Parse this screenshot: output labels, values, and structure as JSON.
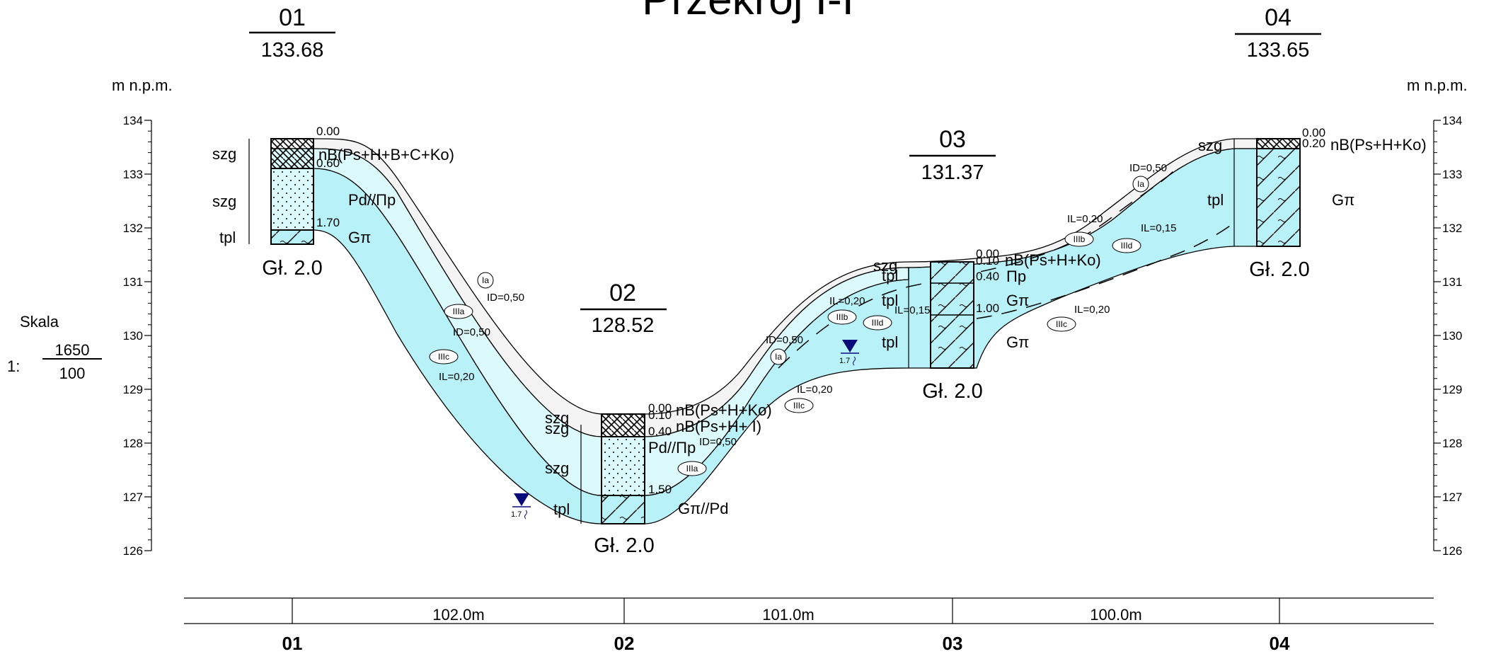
{
  "title": "Przekrój I-I",
  "unit_label": "m n.p.m.",
  "scale": {
    "label": "Skala",
    "prefix": "1:",
    "numerator": "1650",
    "denominator": "100"
  },
  "axis": {
    "ticks": [
      "134",
      "133",
      "132",
      "131",
      "130",
      "129",
      "128",
      "127",
      "126"
    ],
    "min": 126,
    "max": 134
  },
  "boreholes": [
    {
      "id": "01",
      "elevation": "133.68",
      "depth_label": "Gł. 2.0",
      "ground": 133.68
    },
    {
      "id": "02",
      "elevation": "128.52",
      "depth_label": "Gł. 2.0",
      "ground": 128.52
    },
    {
      "id": "03",
      "elevation": "131.37",
      "depth_label": "Gł. 2.0",
      "ground": 131.37
    },
    {
      "id": "04",
      "elevation": "133.65",
      "depth_label": "Gł. 2.0",
      "ground": 133.65
    }
  ],
  "depths": {
    "b01": [
      "0.00",
      "0.60",
      "1.70"
    ],
    "b02": [
      "0.00",
      "0.10",
      "0.40",
      "1.50"
    ],
    "b03": [
      "0.00",
      "0.10",
      "0.40",
      "1.00"
    ],
    "b04": [
      "0.00",
      "0.20"
    ]
  },
  "layer_labels": {
    "b01_szg_a": "szg",
    "b01_szg_b": "szg",
    "b01_tpl": "tpl",
    "b01_nb": "nB(Ps+H+B+C+Ko)",
    "b01_pd": "Pd//Пp",
    "b01_g": "Gπ",
    "b02_szg_a": "szg",
    "b02_szg_b": "szg",
    "b02_szg_c": "szg",
    "b02_tpl": "tpl",
    "b02_nb1": "nB(Ps+H+Ko)",
    "b02_nb2": "nB(Ps+H+ I)",
    "b02_pd": "Pd//Пp",
    "b02_gpd": "Gπ//Pd",
    "b03_szg": "szg",
    "b03_tpl_a": "tpl",
    "b03_tpl_b": "tpl",
    "b03_tpl_c": "tpl",
    "b03_nb": "nB(Ps+H+Ko)",
    "b03_p": "Пp",
    "b03_g1": "Gπ",
    "b03_g2": "Gπ",
    "b04_szg": "szg",
    "b04_tpl": "tpl",
    "b04_nb": "nB(Ps+H+Ko)",
    "b04_g": "Gπ"
  },
  "annotations": {
    "id1": "ID=0,50",
    "id2": "ID=0,50",
    "id3": "ID=0,50",
    "id4": "ID=0,50",
    "id5": "ID=0,50",
    "il1": "IL=0,20",
    "il2": "IL=0,20",
    "il3": "IL=0,20",
    "il4": "IL=0,15",
    "il5": "IL=0,20",
    "il6": "IL=0,20",
    "il7": "IL=0,15"
  },
  "soil_codes": {
    "a1": "Ia",
    "a2": "IIIa",
    "a3": "IIIc",
    "a4": "IIIa",
    "a5": "Ia",
    "a6": "IIIc",
    "a7": "IIIb",
    "a8": "IIId",
    "a9": "IIIc",
    "a10": "IIIb",
    "a11": "IIId",
    "a12": "Ia"
  },
  "water": [
    {
      "label": "1.7"
    },
    {
      "label": "1.7"
    }
  ],
  "distances": [
    "102.0m",
    "101.0m",
    "100.0m"
  ],
  "colors": {
    "fill_light": "#dcfafc",
    "fill_cyan": "#b8f2f8",
    "fill_top": "#f4f4f4",
    "line": "#000000",
    "water": "#0a0a7a"
  }
}
